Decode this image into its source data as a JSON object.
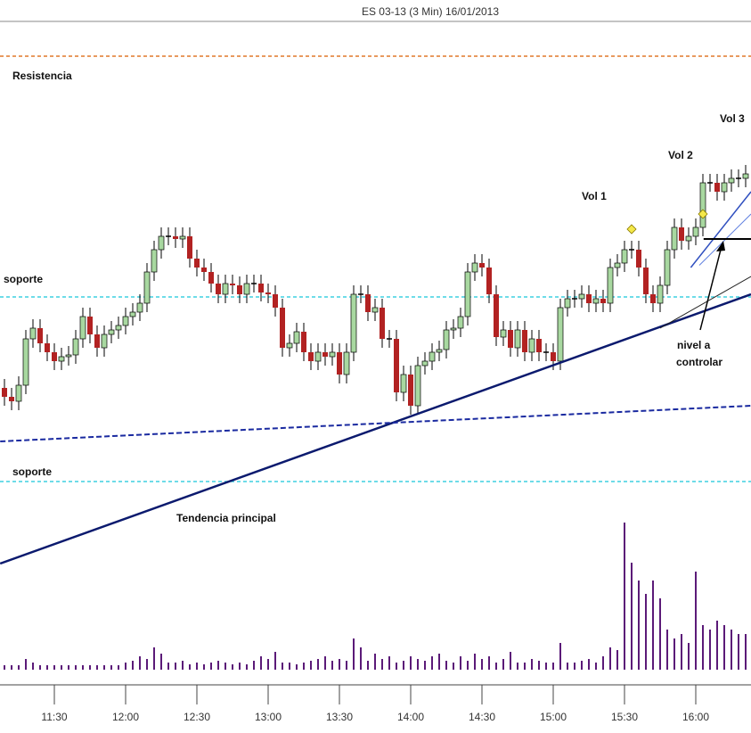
{
  "chart_data": {
    "type": "candlestick",
    "title": "ES 03-13 (3 Min)  16/01/2013",
    "categories": [
      null,
      null,
      null,
      null,
      null,
      null,
      null,
      "11:30",
      null,
      null,
      null,
      null,
      null,
      null,
      null,
      null,
      null,
      "12:00",
      null,
      null,
      null,
      null,
      null,
      null,
      null,
      null,
      null,
      "12:30",
      null,
      null,
      null,
      null,
      null,
      null,
      null,
      null,
      null,
      "13:00",
      null,
      null,
      null,
      null,
      null,
      null,
      null,
      null,
      null,
      "13:30",
      null,
      null,
      null,
      null,
      null,
      null,
      null,
      null,
      null,
      "14:00",
      null,
      null,
      null,
      null,
      null,
      null,
      null,
      null,
      null,
      "14:30",
      null,
      null,
      null,
      null,
      null,
      null,
      null,
      null,
      null,
      "15:00",
      null,
      null,
      null,
      null,
      null,
      null,
      null,
      null,
      null,
      "15:30",
      null,
      null,
      null,
      null,
      null,
      null,
      null,
      null,
      null,
      "16:00",
      null,
      null,
      null,
      null,
      null,
      null,
      null
    ],
    "open": [
      33,
      31,
      30,
      33.6,
      44,
      46.4,
      43,
      41,
      39,
      40,
      40.4,
      44,
      49,
      45,
      42,
      45,
      46,
      47,
      49,
      50,
      52,
      59,
      64,
      67,
      67,
      66.4,
      67,
      62,
      60,
      59,
      56.4,
      54,
      56.4,
      56,
      54,
      56.4,
      56.4,
      54.4,
      54,
      51,
      42,
      43,
      45.6,
      41,
      39,
      41,
      40,
      41,
      36,
      41,
      54,
      54,
      50,
      51,
      44,
      44,
      32,
      36,
      29,
      38,
      39,
      41,
      41.6,
      46,
      46.4,
      49,
      59,
      61,
      60,
      54,
      44.4,
      46,
      42,
      46,
      41,
      44,
      41,
      41,
      39,
      51,
      53,
      53,
      54,
      52,
      53,
      52,
      60,
      61,
      64,
      64,
      60,
      54,
      52,
      56,
      64,
      69,
      66,
      67,
      69,
      79,
      79,
      77,
      79,
      80,
      80
    ],
    "high": [
      35,
      33,
      35.6,
      46,
      48.4,
      48.4,
      45,
      43,
      42,
      42.4,
      46,
      51,
      51,
      47,
      47,
      48,
      49,
      51,
      52,
      54,
      61,
      66,
      69,
      69,
      69,
      69,
      69,
      64,
      62,
      61,
      58.4,
      58.4,
      58.4,
      58,
      58.4,
      58.4,
      58.4,
      56.4,
      56,
      53,
      45,
      47.6,
      47.6,
      43,
      43,
      43,
      43,
      43,
      43,
      56,
      56,
      56,
      53,
      53,
      46,
      46,
      38,
      38,
      40,
      41,
      43,
      43.6,
      48,
      48.4,
      51,
      61,
      63,
      63,
      62,
      56,
      48,
      48,
      48,
      48,
      46,
      46,
      43,
      43,
      53,
      55,
      55,
      56,
      56,
      55,
      55,
      62,
      63,
      66,
      66,
      66,
      62,
      56,
      58,
      66,
      71,
      71,
      69,
      71,
      81,
      81,
      81,
      81,
      82,
      82,
      83
    ],
    "low": [
      29,
      28,
      28,
      31.6,
      42,
      41,
      39,
      37,
      37,
      38,
      38.4,
      42,
      43,
      40,
      40,
      43,
      44,
      45,
      47,
      48,
      50,
      57,
      62,
      65,
      64.4,
      64.4,
      60,
      58,
      57,
      54.4,
      52,
      52,
      54,
      52,
      52,
      54.4,
      52.4,
      52,
      49,
      40,
      40,
      41,
      39,
      37,
      37,
      38,
      38,
      34,
      34,
      39,
      52,
      48,
      48,
      42,
      42,
      30,
      30,
      27,
      27,
      36,
      37,
      39,
      39.6,
      44,
      44.4,
      47,
      57,
      58,
      52,
      42.4,
      42.4,
      40,
      40,
      39,
      39,
      39,
      39,
      37,
      37,
      49,
      51,
      51,
      50,
      50,
      50,
      50,
      58,
      59,
      62,
      58,
      52,
      50,
      50,
      54,
      62,
      64,
      64,
      65,
      67,
      77,
      75,
      75,
      77,
      78,
      78
    ],
    "close": [
      31,
      30,
      33.6,
      44,
      46.4,
      43,
      41,
      39,
      40,
      40.4,
      44,
      49,
      45,
      42,
      45,
      46,
      47,
      49,
      50,
      52,
      59,
      64,
      67,
      67,
      66.4,
      67,
      62,
      60,
      59,
      56.4,
      54,
      56.4,
      56,
      54,
      56.4,
      56.4,
      54.4,
      54,
      51,
      42,
      43,
      45.6,
      41,
      39,
      41,
      40,
      41,
      36,
      41,
      54,
      54,
      50,
      51,
      44,
      44,
      32,
      36,
      29,
      38,
      39,
      41,
      41.6,
      46,
      46.4,
      49,
      59,
      61,
      60,
      54,
      44.4,
      46,
      42,
      46,
      41,
      44,
      41,
      41,
      39,
      51,
      53,
      53,
      54,
      52,
      53,
      52,
      60,
      61,
      64,
      64,
      60,
      54,
      52,
      56,
      64,
      69,
      66,
      67,
      69,
      79,
      79,
      77,
      79,
      80,
      80,
      81
    ],
    "volume": [
      5,
      5,
      5,
      12,
      8,
      5,
      5,
      5,
      5,
      5,
      5,
      5,
      5,
      5,
      5,
      5,
      5,
      8,
      10,
      15,
      12,
      25,
      18,
      8,
      8,
      10,
      6,
      8,
      6,
      8,
      10,
      8,
      6,
      8,
      6,
      10,
      15,
      12,
      20,
      8,
      8,
      6,
      8,
      10,
      12,
      15,
      10,
      12,
      10,
      35,
      25,
      10,
      18,
      12,
      15,
      8,
      10,
      15,
      12,
      10,
      15,
      18,
      10,
      8,
      15,
      10,
      18,
      12,
      15,
      8,
      12,
      20,
      8,
      8,
      12,
      10,
      8,
      8,
      30,
      8,
      8,
      10,
      12,
      8,
      15,
      25,
      22,
      165,
      120,
      100,
      85,
      100,
      80,
      45,
      35,
      40,
      30,
      110,
      50,
      45,
      55,
      50,
      45,
      40,
      40
    ],
    "up_color": "#a8d8a0",
    "down_color": "#b22222",
    "volume_color": "#5b1a78",
    "ylim": [
      -30,
      116
    ],
    "vlim": [
      0,
      170
    ],
    "levels": [
      {
        "value": 107.4,
        "color": "#e0782a"
      },
      {
        "value": 53.4,
        "color": "#3fd0e0"
      },
      {
        "value": 12,
        "color": "#3fd0e0"
      }
    ],
    "lines": [
      {
        "x": [
          -0.6,
          104.75
        ],
        "y": [
          -6.4,
          54
        ],
        "color": "#0b1a6e",
        "dash": false,
        "width": 2.5
      },
      {
        "x": [
          -0.6,
          104.75
        ],
        "y": [
          21,
          29
        ],
        "color": "#1a2aa0",
        "dash": true,
        "width": 2
      },
      {
        "x": [
          92,
          104.75
        ],
        "y": [
          46.4,
          58
        ],
        "color": "#222222",
        "dash": false,
        "width": 1
      },
      {
        "x": [
          96.3,
          104.75
        ],
        "y": [
          60,
          77
        ],
        "color": "#3050c0",
        "dash": false,
        "width": 1.5
      },
      {
        "x": [
          97.5,
          104.75
        ],
        "y": [
          60.5,
          72
        ],
        "color": "#6080e0",
        "dash": false,
        "width": 1
      },
      {
        "x": [
          98.1,
          104.75
        ],
        "y": [
          66.4,
          66.4
        ],
        "color": "#000000",
        "dash": false,
        "width": 2
      }
    ],
    "markers": [
      {
        "x": 88,
        "y": 68.6
      },
      {
        "x": 98,
        "y": 72
      }
    ],
    "annotations": {
      "resistencia": "Resistencia",
      "soporte1": "soporte",
      "soporte2": "soporte",
      "tendencia": "Tendencia principal",
      "vol1": "Vol 1",
      "vol2": "Vol 2",
      "vol3": "Vol 3",
      "nivel1": "nivel a",
      "nivel2": "controlar"
    }
  }
}
